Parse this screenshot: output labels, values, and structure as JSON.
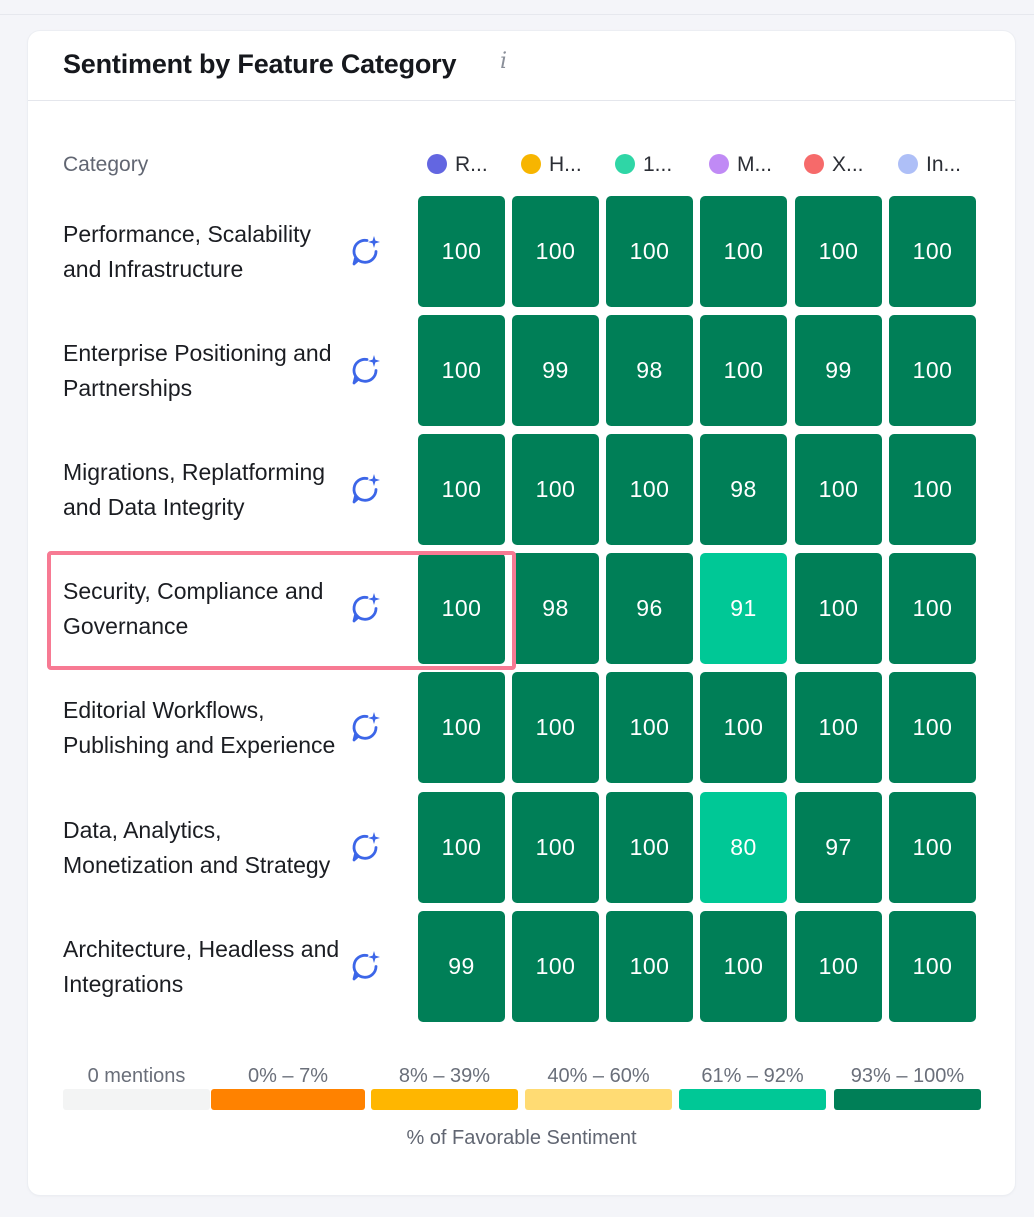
{
  "card": {
    "title": "Sentiment by Feature Category",
    "info_icon": "info-icon"
  },
  "table": {
    "category_header": "Category",
    "series": [
      {
        "label": "R...",
        "color": "#6366e1"
      },
      {
        "label": "H...",
        "color": "#f7b500"
      },
      {
        "label": "1...",
        "color": "#2fd6a6"
      },
      {
        "label": "M...",
        "color": "#c08af5"
      },
      {
        "label": "X...",
        "color": "#f66a6a"
      },
      {
        "label": "In...",
        "color": "#aebff7"
      }
    ],
    "row_icon": "ai-sparkle-chat-icon",
    "rows": [
      {
        "label": "Performance, Scalability and Infrastructure",
        "values": [
          100,
          100,
          100,
          100,
          100,
          100
        ]
      },
      {
        "label": "Enterprise Positioning and Partnerships",
        "values": [
          100,
          99,
          98,
          100,
          99,
          100
        ]
      },
      {
        "label": "Migrations, Replatforming and Data Integrity",
        "values": [
          100,
          100,
          100,
          98,
          100,
          100
        ]
      },
      {
        "label": "Security, Compliance and Governance",
        "values": [
          100,
          98,
          96,
          91,
          100,
          100
        ],
        "highlighted": true
      },
      {
        "label": "Editorial Workflows, Publishing and Experience",
        "values": [
          100,
          100,
          100,
          100,
          100,
          100
        ]
      },
      {
        "label": "Data, Analytics, Monetization and Strategy",
        "values": [
          100,
          100,
          100,
          80,
          97,
          100
        ]
      },
      {
        "label": "Architecture, Headless and Integrations",
        "values": [
          99,
          100,
          100,
          100,
          100,
          100
        ]
      }
    ]
  },
  "scale": {
    "title": "% of Favorable Sentiment",
    "buckets": [
      {
        "label": "0 mentions",
        "color": "#f3f4f4"
      },
      {
        "label": "0% – 7%",
        "color": "#ff8200"
      },
      {
        "label": "8% – 39%",
        "color": "#ffb600"
      },
      {
        "label": "40% – 60%",
        "color": "#ffdb73"
      },
      {
        "label": "61% – 92%",
        "color": "#00c896"
      },
      {
        "label": "93% – 100%",
        "color": "#007f57"
      }
    ]
  }
}
